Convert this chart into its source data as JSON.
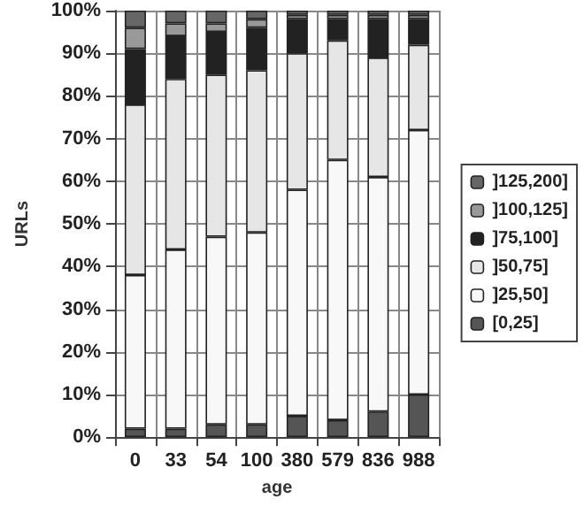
{
  "chart_data": {
    "type": "bar",
    "stacked": true,
    "xlabel": "age",
    "ylabel": "URLs",
    "categories": [
      "0",
      "33",
      "54",
      "100",
      "380",
      "579",
      "836",
      "988"
    ],
    "series": [
      {
        "name": "[0,25]",
        "color": "#555555",
        "values": [
          2,
          2,
          3,
          3,
          5,
          4,
          6,
          10
        ]
      },
      {
        "name": "]25,50]",
        "color": "#f8f8f8",
        "values": [
          36,
          42,
          44,
          45,
          53,
          61,
          55,
          62
        ]
      },
      {
        "name": "]50,75]",
        "color": "#e6e6e6",
        "values": [
          40,
          40,
          38,
          38,
          32,
          28,
          28,
          20
        ]
      },
      {
        "name": "]75,100]",
        "color": "#222222",
        "values": [
          13,
          10,
          10,
          10,
          8,
          5,
          9,
          6
        ]
      },
      {
        "name": "]100,125]",
        "color": "#999999",
        "values": [
          5,
          3,
          2,
          2,
          1,
          1,
          1,
          1
        ]
      },
      {
        "name": "]125,200]",
        "color": "#666666",
        "values": [
          4,
          3,
          3,
          2,
          1,
          1,
          1,
          1
        ]
      }
    ],
    "ylim": [
      0,
      100
    ],
    "yticks": [
      {
        "value": 0,
        "label": "0%"
      },
      {
        "value": 10,
        "label": "10%"
      },
      {
        "value": 20,
        "label": "20%"
      },
      {
        "value": 30,
        "label": "30%"
      },
      {
        "value": 40,
        "label": "40%"
      },
      {
        "value": 50,
        "label": "50%"
      },
      {
        "value": 60,
        "label": "60%"
      },
      {
        "value": 70,
        "label": "70%"
      },
      {
        "value": 80,
        "label": "80%"
      },
      {
        "value": 90,
        "label": "90%"
      },
      {
        "value": 100,
        "label": "100%"
      }
    ],
    "grid": true,
    "legend": "right"
  }
}
